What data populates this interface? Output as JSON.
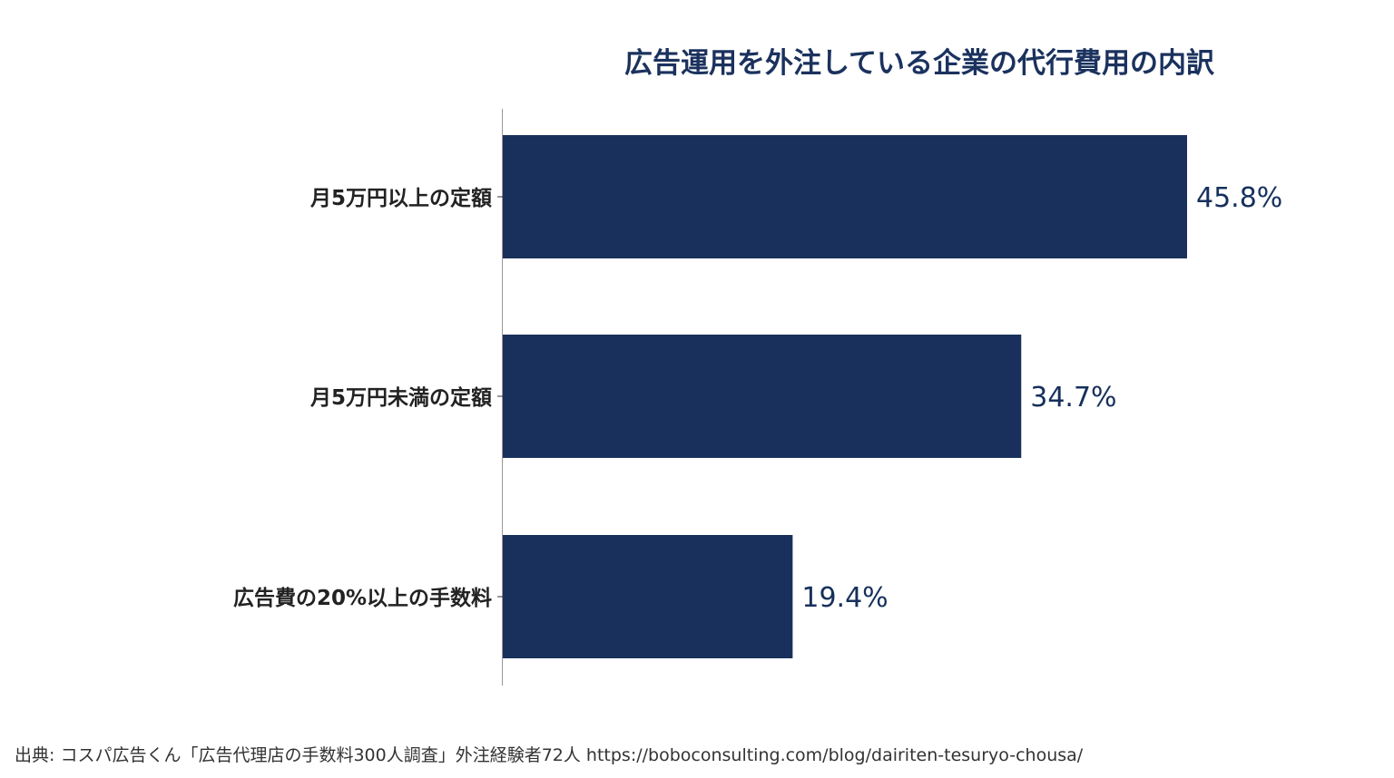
{
  "chart_data": {
    "type": "bar",
    "orientation": "horizontal",
    "title": "広告運用を外注している企業の代行費用の内訳",
    "categories": [
      "月5万円以上の定額",
      "月5万円未満の定額",
      "広告費の20%以上の手数料"
    ],
    "values": [
      45.8,
      34.7,
      19.4
    ],
    "data_labels": [
      "45.8%",
      "34.7%",
      "19.4%"
    ],
    "xlim": [
      0,
      50
    ],
    "grid": false,
    "bar_color": "#18305b"
  },
  "source": "出典: コスパ広告くん「広告代理店の手数料300人調査」外注経験者72人 https://boboconsulting.com/blog/dairiten-tesuryo-chousa/"
}
